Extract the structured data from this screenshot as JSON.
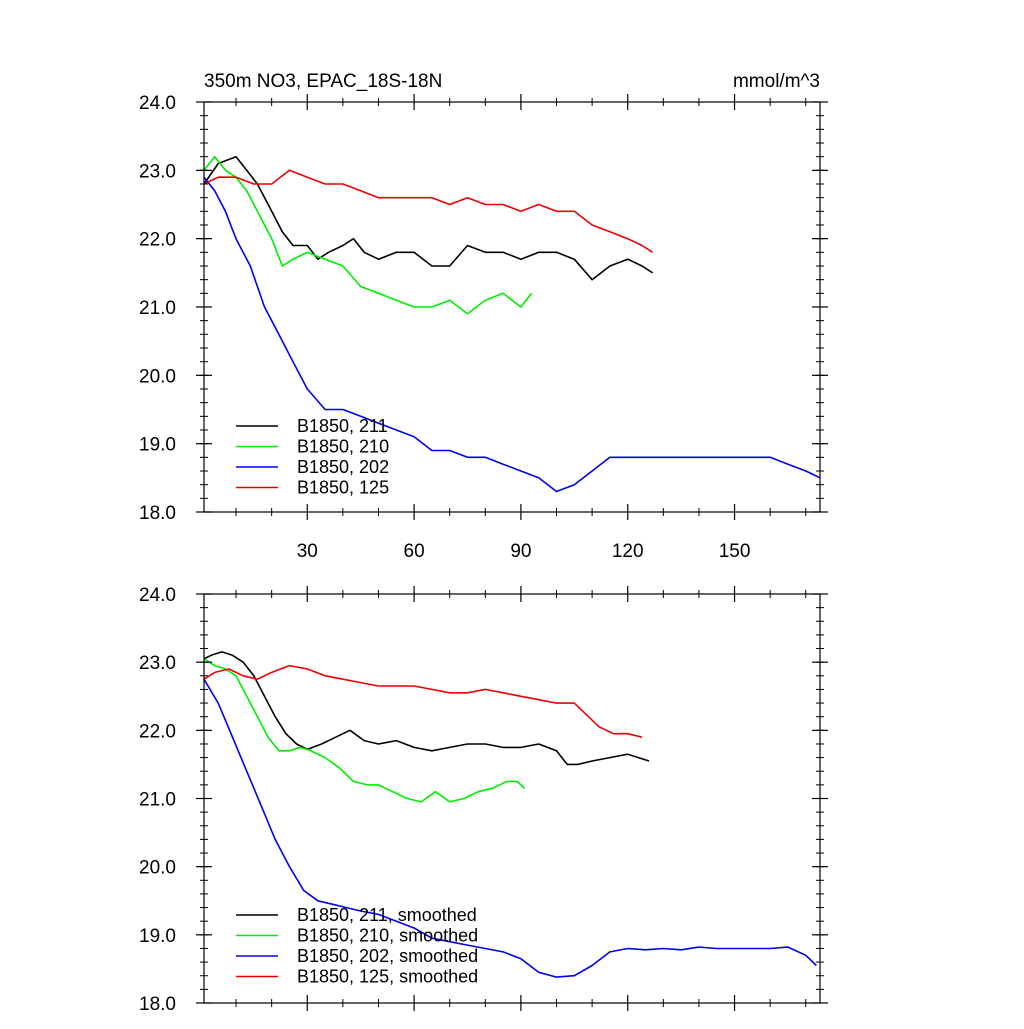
{
  "chart_data": [
    {
      "type": "line",
      "title": "350m NO3, EPAC_18S-18N",
      "units": "mmol/m^3",
      "xlim": [
        1,
        174
      ],
      "ylim": [
        18.0,
        24.0
      ],
      "xticks": [
        30,
        60,
        90,
        120,
        150
      ],
      "yticks": [
        "18.0",
        "19.0",
        "20.0",
        "21.0",
        "22.0",
        "23.0",
        "24.0"
      ],
      "series": [
        {
          "name": "B1850, 211",
          "color": "#000000",
          "x": [
            1,
            5,
            10,
            13,
            16,
            20,
            23,
            26,
            30,
            33,
            36,
            40,
            43,
            46,
            50,
            55,
            60,
            65,
            70,
            75,
            80,
            85,
            90,
            95,
            100,
            105,
            110,
            115,
            120,
            124,
            127
          ],
          "y": [
            22.8,
            23.1,
            23.2,
            23.0,
            22.8,
            22.4,
            22.1,
            21.9,
            21.9,
            21.7,
            21.8,
            21.9,
            22.0,
            21.8,
            21.7,
            21.8,
            21.8,
            21.6,
            21.6,
            21.9,
            21.8,
            21.8,
            21.7,
            21.8,
            21.8,
            21.7,
            21.4,
            21.6,
            21.7,
            21.6,
            21.5
          ]
        },
        {
          "name": "B1850, 210",
          "color": "#00ee00",
          "x": [
            1,
            4,
            7,
            10,
            13,
            16,
            20,
            23,
            26,
            30,
            35,
            40,
            45,
            50,
            55,
            60,
            65,
            70,
            75,
            80,
            85,
            90,
            93
          ],
          "y": [
            23.0,
            23.2,
            23.0,
            22.9,
            22.7,
            22.4,
            22.0,
            21.6,
            21.7,
            21.8,
            21.7,
            21.6,
            21.3,
            21.2,
            21.1,
            21.0,
            21.0,
            21.1,
            20.9,
            21.1,
            21.2,
            21.0,
            21.2
          ]
        },
        {
          "name": "B1850, 202",
          "color": "#0000ee",
          "x": [
            1,
            4,
            7,
            10,
            14,
            18,
            22,
            26,
            30,
            35,
            40,
            45,
            50,
            55,
            60,
            65,
            70,
            75,
            80,
            85,
            90,
            95,
            100,
            105,
            110,
            115,
            120,
            125,
            130,
            135,
            140,
            145,
            150,
            155,
            160,
            165,
            170,
            174
          ],
          "y": [
            22.9,
            22.7,
            22.4,
            22.0,
            21.6,
            21.0,
            20.6,
            20.2,
            19.8,
            19.5,
            19.5,
            19.4,
            19.3,
            19.2,
            19.1,
            18.9,
            18.9,
            18.8,
            18.8,
            18.7,
            18.6,
            18.5,
            18.3,
            18.4,
            18.6,
            18.8,
            18.8,
            18.8,
            18.8,
            18.8,
            18.8,
            18.8,
            18.8,
            18.8,
            18.8,
            18.7,
            18.6,
            18.5
          ]
        },
        {
          "name": "B1850, 125",
          "color": "#ee0000",
          "x": [
            1,
            5,
            10,
            15,
            20,
            25,
            30,
            35,
            40,
            45,
            50,
            55,
            60,
            65,
            70,
            75,
            80,
            85,
            90,
            95,
            100,
            105,
            110,
            115,
            120,
            124,
            127
          ],
          "y": [
            22.8,
            22.9,
            22.9,
            22.8,
            22.8,
            23.0,
            22.9,
            22.8,
            22.8,
            22.7,
            22.6,
            22.6,
            22.6,
            22.6,
            22.5,
            22.6,
            22.5,
            22.5,
            22.4,
            22.5,
            22.4,
            22.4,
            22.2,
            22.1,
            22.0,
            21.9,
            21.8
          ]
        }
      ]
    },
    {
      "type": "line",
      "xlim": [
        1,
        174
      ],
      "ylim": [
        18.0,
        24.0
      ],
      "yticks": [
        "18.0",
        "19.0",
        "20.0",
        "21.0",
        "22.0",
        "23.0",
        "24.0"
      ],
      "series": [
        {
          "name": "B1850, 211, smoothed",
          "color": "#000000",
          "x": [
            1,
            3,
            6,
            9,
            12,
            15,
            18,
            21,
            24,
            27,
            30,
            34,
            38,
            42,
            46,
            50,
            55,
            60,
            65,
            70,
            75,
            80,
            85,
            90,
            95,
            100,
            103,
            106,
            110,
            115,
            120,
            123,
            126
          ],
          "y": [
            23.05,
            23.1,
            23.15,
            23.1,
            23.0,
            22.8,
            22.5,
            22.2,
            21.95,
            21.8,
            21.72,
            21.8,
            21.9,
            22.0,
            21.85,
            21.8,
            21.85,
            21.75,
            21.7,
            21.75,
            21.8,
            21.8,
            21.75,
            21.75,
            21.8,
            21.7,
            21.5,
            21.5,
            21.55,
            21.6,
            21.65,
            21.6,
            21.55
          ]
        },
        {
          "name": "B1850, 210, smoothed",
          "color": "#00ee00",
          "x": [
            1,
            4,
            7,
            10,
            13,
            16,
            19,
            22,
            25,
            28,
            31,
            35,
            39,
            43,
            47,
            50,
            54,
            58,
            62,
            66,
            70,
            74,
            78,
            82,
            86,
            89,
            91
          ],
          "y": [
            23.05,
            22.95,
            22.9,
            22.8,
            22.5,
            22.2,
            21.9,
            21.7,
            21.7,
            21.75,
            21.7,
            21.6,
            21.45,
            21.25,
            21.2,
            21.2,
            21.1,
            21.0,
            20.95,
            21.1,
            20.95,
            21.0,
            21.1,
            21.15,
            21.25,
            21.25,
            21.15
          ]
        },
        {
          "name": "B1850, 202, smoothed",
          "color": "#0000ee",
          "x": [
            1,
            5,
            9,
            13,
            17,
            21,
            25,
            29,
            33,
            37,
            41,
            45,
            50,
            55,
            60,
            65,
            70,
            75,
            80,
            85,
            90,
            95,
            100,
            105,
            110,
            115,
            120,
            125,
            130,
            135,
            140,
            145,
            150,
            155,
            160,
            165,
            170,
            173
          ],
          "y": [
            22.75,
            22.4,
            21.9,
            21.4,
            20.9,
            20.4,
            20.0,
            19.65,
            19.5,
            19.45,
            19.4,
            19.35,
            19.3,
            19.2,
            19.1,
            18.95,
            18.9,
            18.85,
            18.8,
            18.75,
            18.65,
            18.45,
            18.38,
            18.4,
            18.55,
            18.75,
            18.8,
            18.78,
            18.8,
            18.78,
            18.82,
            18.8,
            18.8,
            18.8,
            18.8,
            18.82,
            18.7,
            18.55
          ]
        },
        {
          "name": "B1850, 125, smoothed",
          "color": "#ee0000",
          "x": [
            1,
            4,
            8,
            12,
            16,
            20,
            25,
            30,
            35,
            40,
            45,
            50,
            55,
            60,
            65,
            70,
            75,
            80,
            85,
            90,
            95,
            100,
            105,
            108,
            112,
            116,
            120,
            124
          ],
          "y": [
            22.75,
            22.85,
            22.9,
            22.8,
            22.75,
            22.85,
            22.95,
            22.9,
            22.8,
            22.75,
            22.7,
            22.65,
            22.65,
            22.65,
            22.6,
            22.55,
            22.55,
            22.6,
            22.55,
            22.5,
            22.45,
            22.4,
            22.4,
            22.25,
            22.05,
            21.95,
            21.95,
            21.9
          ]
        }
      ]
    }
  ]
}
